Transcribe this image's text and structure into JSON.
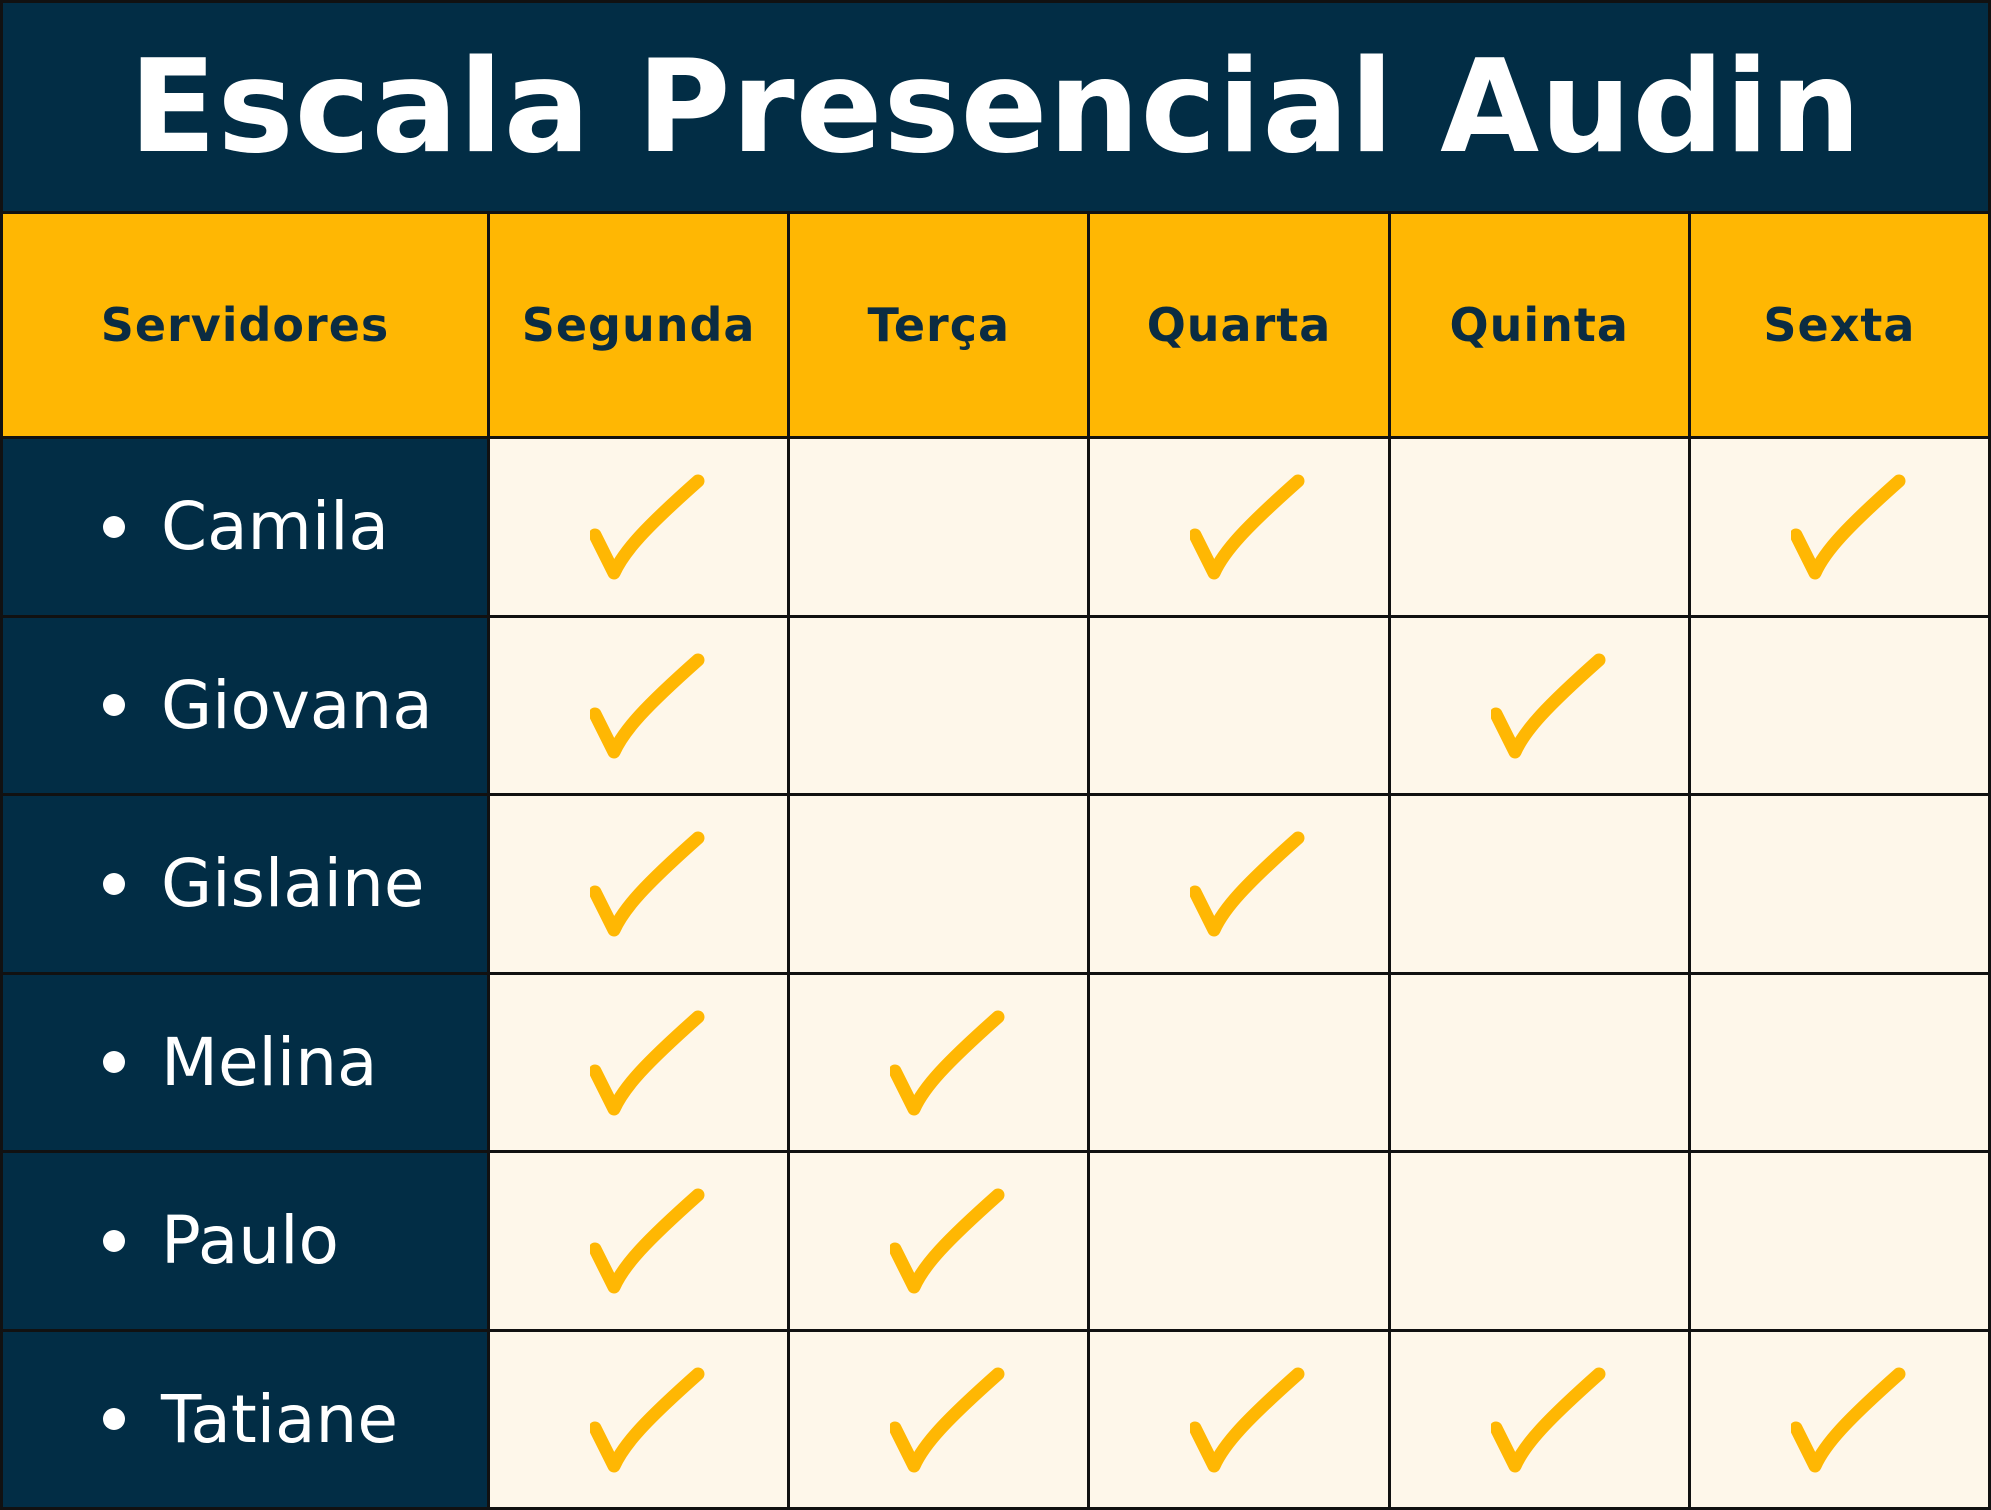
{
  "title": "Escala Presencial Audin",
  "colors": {
    "navy": "#022d45",
    "yellow": "#ffb703",
    "cream": "#fef7ea",
    "check": "#ffb703"
  },
  "header": {
    "first": "Servidores",
    "days": [
      "Segunda",
      "Terça",
      "Quarta",
      "Quinta",
      "Sexta"
    ]
  },
  "rows": [
    {
      "name": "Camila",
      "days": [
        true,
        false,
        true,
        false,
        true
      ]
    },
    {
      "name": "Giovana",
      "days": [
        true,
        false,
        false,
        true,
        false
      ]
    },
    {
      "name": "Gislaine",
      "days": [
        true,
        false,
        true,
        false,
        false
      ]
    },
    {
      "name": "Melina",
      "days": [
        true,
        true,
        false,
        false,
        false
      ]
    },
    {
      "name": "Paulo",
      "days": [
        true,
        true,
        false,
        false,
        false
      ]
    },
    {
      "name": "Tatiane",
      "days": [
        true,
        true,
        true,
        true,
        true
      ]
    }
  ]
}
